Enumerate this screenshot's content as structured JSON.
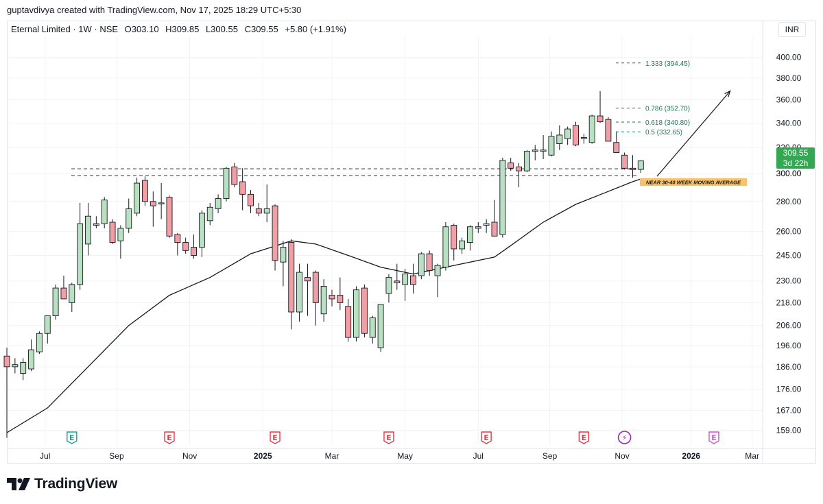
{
  "header": {
    "credit": "guptavdivya created with TradingView.com, Nov 17, 2025 18:29 UTC+5:30"
  },
  "legend": {
    "symbol": "Eternal Limited · 1W · NSE",
    "open": "O303.10",
    "high": "H309.85",
    "low": "L300.55",
    "close": "C309.55",
    "change": "+5.80 (+1.91%)"
  },
  "currency": "INR",
  "last_price": {
    "value": "309.55",
    "countdown": "3d 22h"
  },
  "logo": {
    "text": "TradingView"
  },
  "colors": {
    "up_fill": "#b9e1c1",
    "down_fill": "#f0a0a4",
    "candle_border": "#131722",
    "ma_line": "#131722",
    "fib_text": "#1e7a5f",
    "price_badge": "#33a853",
    "annotation_bg": "#f7c26b"
  },
  "chart_data": {
    "type": "candlestick",
    "title": "Eternal Limited · 1W · NSE",
    "y_axis_ticks": [
      400,
      380,
      360,
      340,
      320,
      300,
      280,
      260,
      245,
      230,
      218,
      206,
      196,
      186,
      176,
      167,
      159
    ],
    "y_scale": "log",
    "ylim": [
      153,
      422
    ],
    "x_axis_ticks": [
      "Jul",
      "Sep",
      "Nov",
      "2025",
      "Mar",
      "May",
      "Jul",
      "Sep",
      "Nov",
      "2026",
      "Mar"
    ],
    "candles": [
      {
        "o": 191,
        "h": 195,
        "l": 156,
        "c": 186
      },
      {
        "o": 186,
        "h": 190,
        "l": 183,
        "c": 187
      },
      {
        "o": 183,
        "h": 190,
        "l": 180,
        "c": 188
      },
      {
        "o": 185,
        "h": 199,
        "l": 184,
        "c": 194
      },
      {
        "o": 193,
        "h": 203,
        "l": 192,
        "c": 202
      },
      {
        "o": 202,
        "h": 210,
        "l": 197,
        "c": 211
      },
      {
        "o": 211,
        "h": 228,
        "l": 209,
        "c": 226
      },
      {
        "o": 226,
        "h": 233,
        "l": 220,
        "c": 220
      },
      {
        "o": 218,
        "h": 229,
        "l": 213,
        "c": 228
      },
      {
        "o": 228,
        "h": 279,
        "l": 225,
        "c": 265
      },
      {
        "o": 252,
        "h": 279,
        "l": 245,
        "c": 270
      },
      {
        "o": 265,
        "h": 270,
        "l": 262,
        "c": 264
      },
      {
        "o": 265,
        "h": 283,
        "l": 262,
        "c": 281
      },
      {
        "o": 266,
        "h": 268,
        "l": 252,
        "c": 253
      },
      {
        "o": 254,
        "h": 264,
        "l": 243,
        "c": 262
      },
      {
        "o": 262,
        "h": 282,
        "l": 259,
        "c": 275
      },
      {
        "o": 272,
        "h": 297,
        "l": 270,
        "c": 293
      },
      {
        "o": 295,
        "h": 298,
        "l": 277,
        "c": 280
      },
      {
        "o": 280,
        "h": 287,
        "l": 263,
        "c": 277
      },
      {
        "o": 279,
        "h": 293,
        "l": 268,
        "c": 279
      },
      {
        "o": 283,
        "h": 284,
        "l": 256,
        "c": 257
      },
      {
        "o": 258,
        "h": 259,
        "l": 245,
        "c": 253
      },
      {
        "o": 253,
        "h": 256,
        "l": 246,
        "c": 248
      },
      {
        "o": 250,
        "h": 258,
        "l": 243,
        "c": 245
      },
      {
        "o": 250,
        "h": 274,
        "l": 244,
        "c": 272
      },
      {
        "o": 267,
        "h": 279,
        "l": 264,
        "c": 276
      },
      {
        "o": 275,
        "h": 285,
        "l": 272,
        "c": 282
      },
      {
        "o": 282,
        "h": 305,
        "l": 280,
        "c": 304
      },
      {
        "o": 305,
        "h": 308,
        "l": 290,
        "c": 292
      },
      {
        "o": 294,
        "h": 304,
        "l": 274,
        "c": 285
      },
      {
        "o": 285,
        "h": 288,
        "l": 272,
        "c": 277
      },
      {
        "o": 275,
        "h": 279,
        "l": 270,
        "c": 272
      },
      {
        "o": 272,
        "h": 292,
        "l": 266,
        "c": 275
      },
      {
        "o": 277,
        "h": 278,
        "l": 236,
        "c": 242
      },
      {
        "o": 241,
        "h": 254,
        "l": 227,
        "c": 250
      },
      {
        "o": 253,
        "h": 255,
        "l": 204,
        "c": 213
      },
      {
        "o": 213,
        "h": 240,
        "l": 208,
        "c": 235
      },
      {
        "o": 232,
        "h": 240,
        "l": 211,
        "c": 230
      },
      {
        "o": 235,
        "h": 236,
        "l": 206,
        "c": 218
      },
      {
        "o": 212,
        "h": 231,
        "l": 208,
        "c": 227
      },
      {
        "o": 222,
        "h": 225,
        "l": 216,
        "c": 220
      },
      {
        "o": 222,
        "h": 232,
        "l": 214,
        "c": 218
      },
      {
        "o": 216,
        "h": 220,
        "l": 198,
        "c": 200
      },
      {
        "o": 200,
        "h": 227,
        "l": 198,
        "c": 225
      },
      {
        "o": 226,
        "h": 228,
        "l": 200,
        "c": 202
      },
      {
        "o": 200,
        "h": 211,
        "l": 197,
        "c": 210
      },
      {
        "o": 195,
        "h": 216,
        "l": 193,
        "c": 217
      },
      {
        "o": 223,
        "h": 234,
        "l": 218,
        "c": 232
      },
      {
        "o": 230,
        "h": 240,
        "l": 225,
        "c": 229
      },
      {
        "o": 228,
        "h": 237,
        "l": 219,
        "c": 234
      },
      {
        "o": 233,
        "h": 240,
        "l": 223,
        "c": 228
      },
      {
        "o": 233,
        "h": 247,
        "l": 231,
        "c": 246
      },
      {
        "o": 246,
        "h": 248,
        "l": 233,
        "c": 236
      },
      {
        "o": 233,
        "h": 240,
        "l": 221,
        "c": 239
      },
      {
        "o": 238,
        "h": 266,
        "l": 236,
        "c": 263
      },
      {
        "o": 264,
        "h": 265,
        "l": 242,
        "c": 249
      },
      {
        "o": 249,
        "h": 256,
        "l": 246,
        "c": 254
      },
      {
        "o": 253,
        "h": 264,
        "l": 248,
        "c": 263
      },
      {
        "o": 262,
        "h": 266,
        "l": 259,
        "c": 263
      },
      {
        "o": 264,
        "h": 268,
        "l": 259,
        "c": 265
      },
      {
        "o": 266,
        "h": 281,
        "l": 257,
        "c": 257
      },
      {
        "o": 258,
        "h": 312,
        "l": 256,
        "c": 310
      },
      {
        "o": 308,
        "h": 312,
        "l": 302,
        "c": 304
      },
      {
        "o": 305,
        "h": 308,
        "l": 290,
        "c": 302
      },
      {
        "o": 302,
        "h": 318,
        "l": 301,
        "c": 317
      },
      {
        "o": 317,
        "h": 322,
        "l": 310,
        "c": 318
      },
      {
        "o": 317,
        "h": 330,
        "l": 311,
        "c": 318
      },
      {
        "o": 314,
        "h": 333,
        "l": 313,
        "c": 329
      },
      {
        "o": 323,
        "h": 338,
        "l": 318,
        "c": 330
      },
      {
        "o": 327,
        "h": 337,
        "l": 322,
        "c": 335
      },
      {
        "o": 338,
        "h": 341,
        "l": 321,
        "c": 322
      },
      {
        "o": 328,
        "h": 331,
        "l": 323,
        "c": 328
      },
      {
        "o": 324,
        "h": 347,
        "l": 323,
        "c": 346
      },
      {
        "o": 346,
        "h": 368,
        "l": 340,
        "c": 341
      },
      {
        "o": 343,
        "h": 345,
        "l": 325,
        "c": 325
      },
      {
        "o": 324,
        "h": 333,
        "l": 317,
        "c": 316
      },
      {
        "o": 314,
        "h": 316,
        "l": 303,
        "c": 304
      },
      {
        "o": 304,
        "h": 314,
        "l": 297,
        "c": 303
      },
      {
        "o": 303.1,
        "h": 309.85,
        "l": 300.55,
        "c": 309.55
      }
    ],
    "moving_average": [
      {
        "t": 0,
        "v": 158
      },
      {
        "t": 5,
        "v": 168
      },
      {
        "t": 10,
        "v": 186
      },
      {
        "t": 15,
        "v": 206
      },
      {
        "t": 20,
        "v": 222
      },
      {
        "t": 25,
        "v": 232
      },
      {
        "t": 30,
        "v": 246
      },
      {
        "t": 35,
        "v": 254
      },
      {
        "t": 38,
        "v": 252
      },
      {
        "t": 42,
        "v": 245
      },
      {
        "t": 46,
        "v": 238
      },
      {
        "t": 50,
        "v": 234
      },
      {
        "t": 54,
        "v": 238
      },
      {
        "t": 58,
        "v": 242
      },
      {
        "t": 60,
        "v": 244
      },
      {
        "t": 62,
        "v": 251
      },
      {
        "t": 66,
        "v": 266
      },
      {
        "t": 70,
        "v": 278
      },
      {
        "t": 74,
        "v": 287
      },
      {
        "t": 77,
        "v": 294
      },
      {
        "t": 78,
        "v": 296
      }
    ],
    "support_levels": [
      303.5,
      298.5
    ],
    "fib_levels": [
      {
        "label": "1.333 (394.45)",
        "value": 394.45
      },
      {
        "label": "0.786 (352.70)",
        "value": 352.7
      },
      {
        "label": "0.618 (340.80)",
        "value": 340.8
      },
      {
        "label": "0.5 (332.65)",
        "value": 332.65
      }
    ],
    "annotation": "NEAR 30-40 WEEK MOVING AVERAGE",
    "projection": {
      "from": {
        "t": 80,
        "v": 298
      },
      "to": {
        "t": 89,
        "v": 368
      }
    },
    "event_markers": [
      {
        "t": 8,
        "label": "E",
        "kind": "earnings-past"
      },
      {
        "t": 20,
        "label": "E",
        "kind": "earnings"
      },
      {
        "t": 33,
        "label": "E",
        "kind": "earnings"
      },
      {
        "t": 47,
        "label": "E",
        "kind": "earnings"
      },
      {
        "t": 59,
        "label": "E",
        "kind": "earnings"
      },
      {
        "t": 71,
        "label": "E",
        "kind": "earnings"
      },
      {
        "t": 76,
        "label": "⚡",
        "kind": "split"
      },
      {
        "t": 87,
        "label": "E",
        "kind": "earnings-future"
      }
    ]
  }
}
